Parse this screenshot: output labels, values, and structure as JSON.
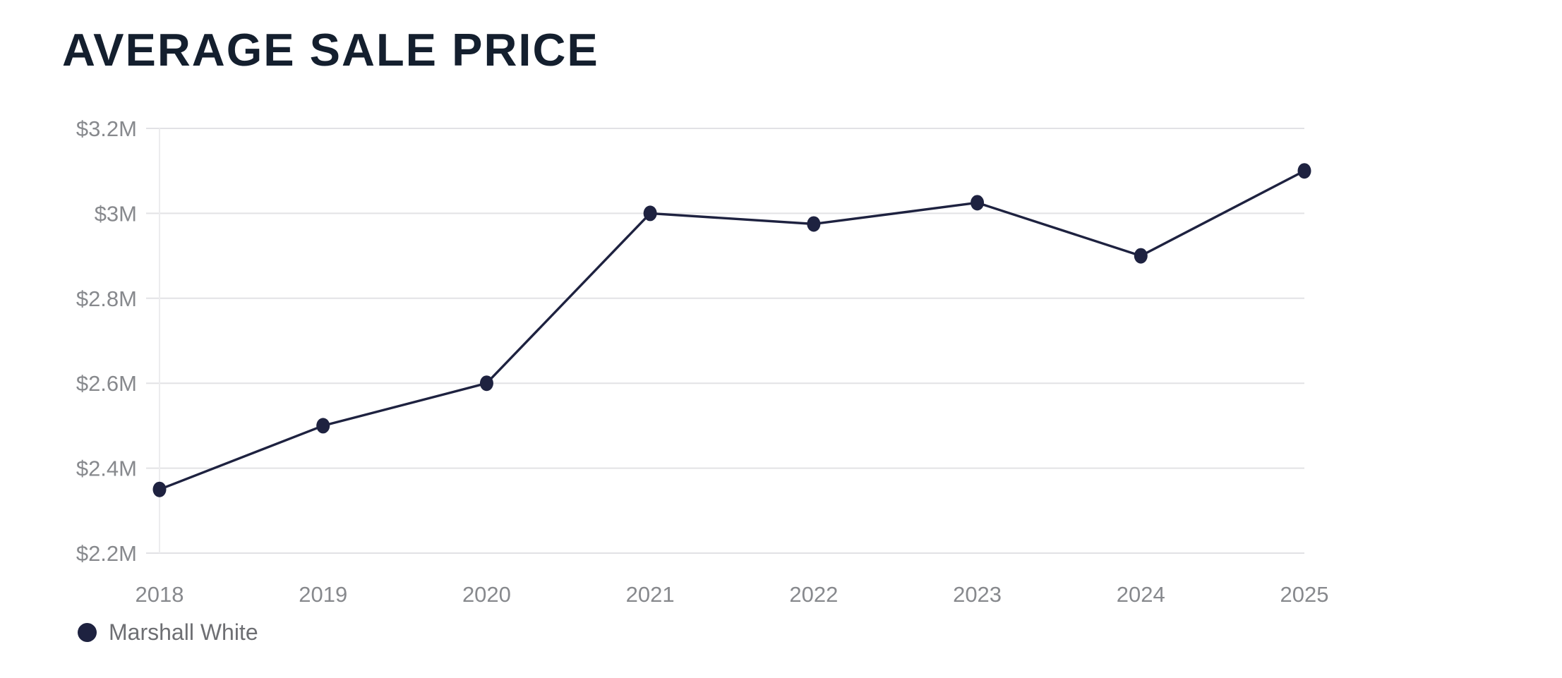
{
  "chart_data": {
    "type": "line",
    "title": "AVERAGE SALE PRICE",
    "categories": [
      "2018",
      "2019",
      "2020",
      "2021",
      "2022",
      "2023",
      "2024",
      "2025"
    ],
    "series": [
      {
        "name": "Marshall White",
        "color": "#1e2240",
        "values": [
          2.35,
          2.5,
          2.6,
          3.0,
          2.975,
          3.025,
          2.9,
          3.1
        ]
      }
    ],
    "xlabel": "",
    "ylabel": "",
    "ylim": [
      2.2,
      3.2
    ],
    "ytick_step": 0.2,
    "ytick_labels": [
      "$2.2M",
      "$2.4M",
      "$2.6M",
      "$2.8M",
      "$3M",
      "$3.2M"
    ],
    "grid": "horizontal",
    "legend_position": "bottom-left",
    "colors": {
      "series": "#1e2240",
      "grid_line": "#e2e2e5",
      "axis_line": "#ececee",
      "tick_label": "#87898d",
      "title": "#141f2e",
      "legend_text": "#6e6f73"
    }
  }
}
